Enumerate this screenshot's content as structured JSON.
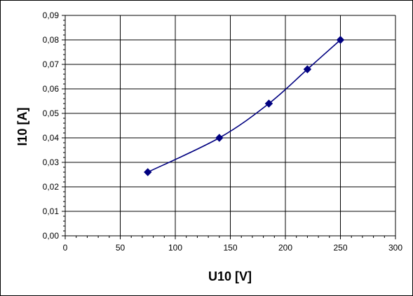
{
  "chart_data": {
    "type": "scatter",
    "xlabel": "U10 [V]",
    "ylabel": "I10 [A]",
    "xlim": [
      0,
      300
    ],
    "ylim": [
      0,
      0.09
    ],
    "x_ticks": [
      0,
      50,
      100,
      150,
      200,
      250,
      300
    ],
    "x_tick_labels": [
      "0",
      "50",
      "100",
      "150",
      "200",
      "250",
      "300"
    ],
    "y_ticks": [
      0,
      0.01,
      0.02,
      0.03,
      0.04,
      0.05,
      0.06,
      0.07,
      0.08,
      0.09
    ],
    "y_tick_labels": [
      "0,00",
      "0,01",
      "0,02",
      "0,03",
      "0,04",
      "0,05",
      "0,06",
      "0,07",
      "0,08",
      "0,09"
    ],
    "grid": true,
    "legend": "none",
    "series": [
      {
        "x": [
          75,
          140,
          185,
          220,
          250
        ],
        "y": [
          0.026,
          0.04,
          0.054,
          0.068,
          0.08
        ],
        "marker": "diamond",
        "line": "smooth",
        "color": "#000080"
      }
    ]
  }
}
